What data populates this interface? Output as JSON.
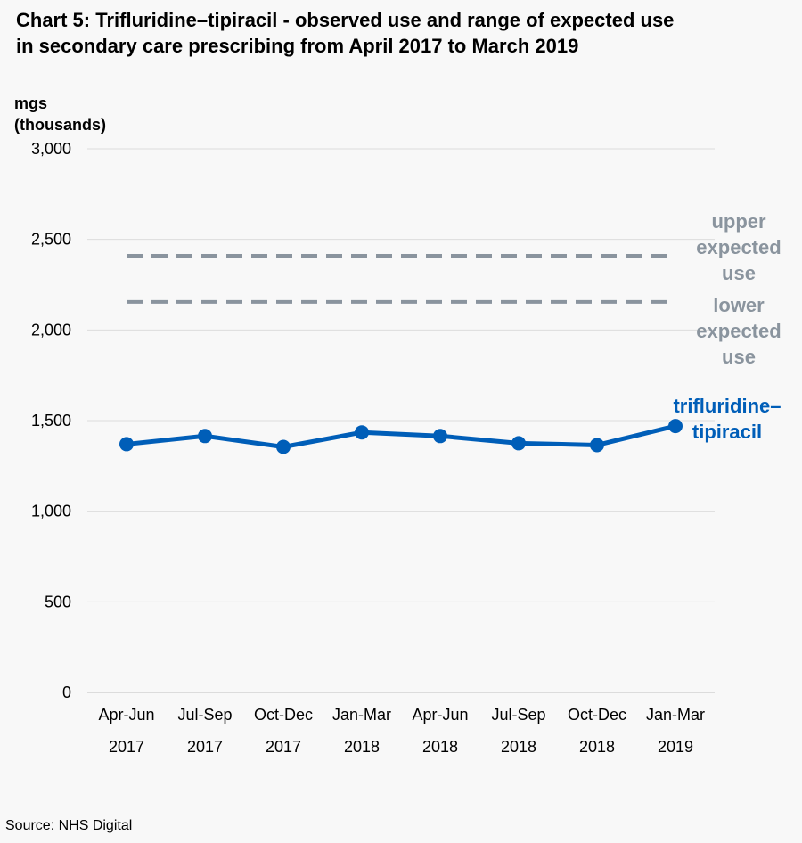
{
  "title_line1": "Chart 5: Trifluridine–tipiracil - observed use and range of expected use",
  "title_line2": "in secondary care prescribing from April 2017 to March 2019",
  "source": "Source: NHS Digital",
  "chart_data": {
    "type": "line",
    "title": "Chart 5: Trifluridine–tipiracil - observed use and range of expected use in secondary care prescribing from April 2017 to March 2019",
    "ylabel": [
      "mgs",
      "(thousands)"
    ],
    "ylim": [
      0,
      3000
    ],
    "yticks": [
      "0",
      "500",
      "1,000",
      "1,500",
      "2,000",
      "2,500",
      "3,000"
    ],
    "ytick_values": [
      0,
      500,
      1000,
      1500,
      2000,
      2500,
      3000
    ],
    "grid": true,
    "categories": [
      [
        "Apr-Jun",
        "2017"
      ],
      [
        "Jul-Sep",
        "2017"
      ],
      [
        "Oct-Dec",
        "2017"
      ],
      [
        "Jan-Mar",
        "2018"
      ],
      [
        "Apr-Jun",
        "2018"
      ],
      [
        "Jul-Sep",
        "2018"
      ],
      [
        "Oct-Dec",
        "2018"
      ],
      [
        "Jan-Mar",
        "2019"
      ]
    ],
    "series": [
      {
        "name": [
          "trifluridine–",
          "tipiracil"
        ],
        "values": [
          1370,
          1415,
          1355,
          1435,
          1415,
          1375,
          1365,
          1470
        ],
        "color": "#005eb8",
        "style": "solid-markers"
      },
      {
        "name": [
          "upper",
          "expected",
          "use"
        ],
        "values": [
          2410,
          2410,
          2410,
          2410,
          2410,
          2410,
          2410,
          2410
        ],
        "color": "#8a949e",
        "style": "dashed"
      },
      {
        "name": [
          "lower",
          "expected",
          "use"
        ],
        "values": [
          2155,
          2155,
          2155,
          2155,
          2155,
          2155,
          2155,
          2155
        ],
        "color": "#8a949e",
        "style": "dashed"
      }
    ]
  }
}
